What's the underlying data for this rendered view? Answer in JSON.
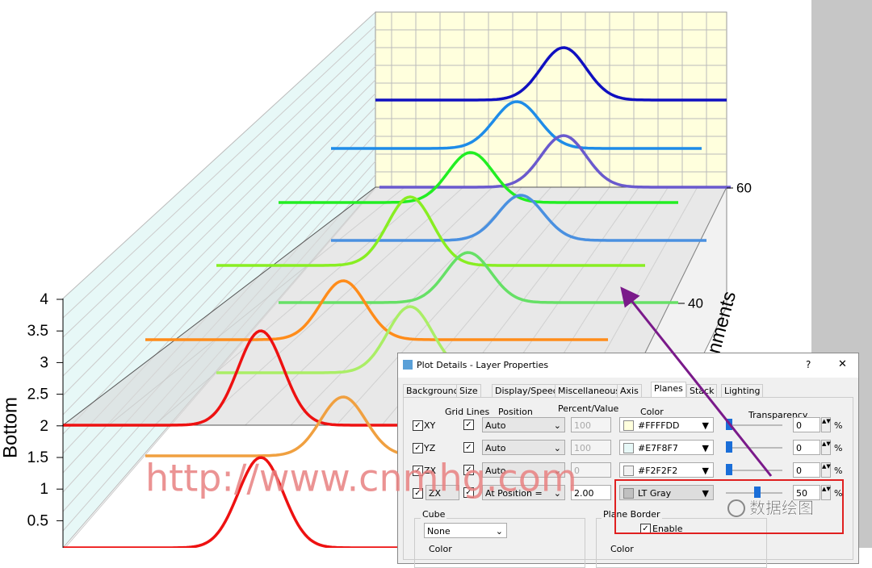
{
  "plot": {
    "y_axis_title": "Bottom",
    "y_ticks": [
      "4",
      "3.5",
      "3",
      "2.5",
      "2",
      "1.5",
      "1",
      "0.5"
    ],
    "z_ticks": [
      "60",
      "40"
    ],
    "z_axis_title": "nments"
  },
  "watermarks": [
    "http://www.cnmhg.com",
    "数据绘图"
  ],
  "dialog": {
    "title": "Plot Details - Layer Properties",
    "help": "?",
    "close": "✕",
    "tabs": [
      "Background",
      "Size",
      "Display/Speed",
      "Miscellaneous",
      "Axis",
      "Planes",
      "Stack",
      "Lighting"
    ],
    "headers": [
      "Grid Lines",
      "Position",
      "Percent/Value",
      "Color",
      "Transparency"
    ],
    "rows": [
      {
        "plane": "XY",
        "position": "Auto",
        "value": "100",
        "color": "#FFFFDD",
        "transparency": "0"
      },
      {
        "plane": "YZ",
        "position": "Auto",
        "value": "100",
        "color": "#E7F8F7",
        "transparency": "0"
      },
      {
        "plane": "ZX",
        "position": "Auto",
        "value": "0",
        "color": "#F2F2F2",
        "transparency": "0"
      },
      {
        "plane": "ZX",
        "position": "At Position =",
        "value": "2.00",
        "color": "LT Gray",
        "transparency": "50"
      }
    ],
    "percent": "%",
    "cube": {
      "label": "Cube",
      "value": "None",
      "color_label": "Color"
    },
    "plane_border": {
      "label": "Plane Border",
      "enable": "Enable",
      "color_label": "Color"
    }
  }
}
